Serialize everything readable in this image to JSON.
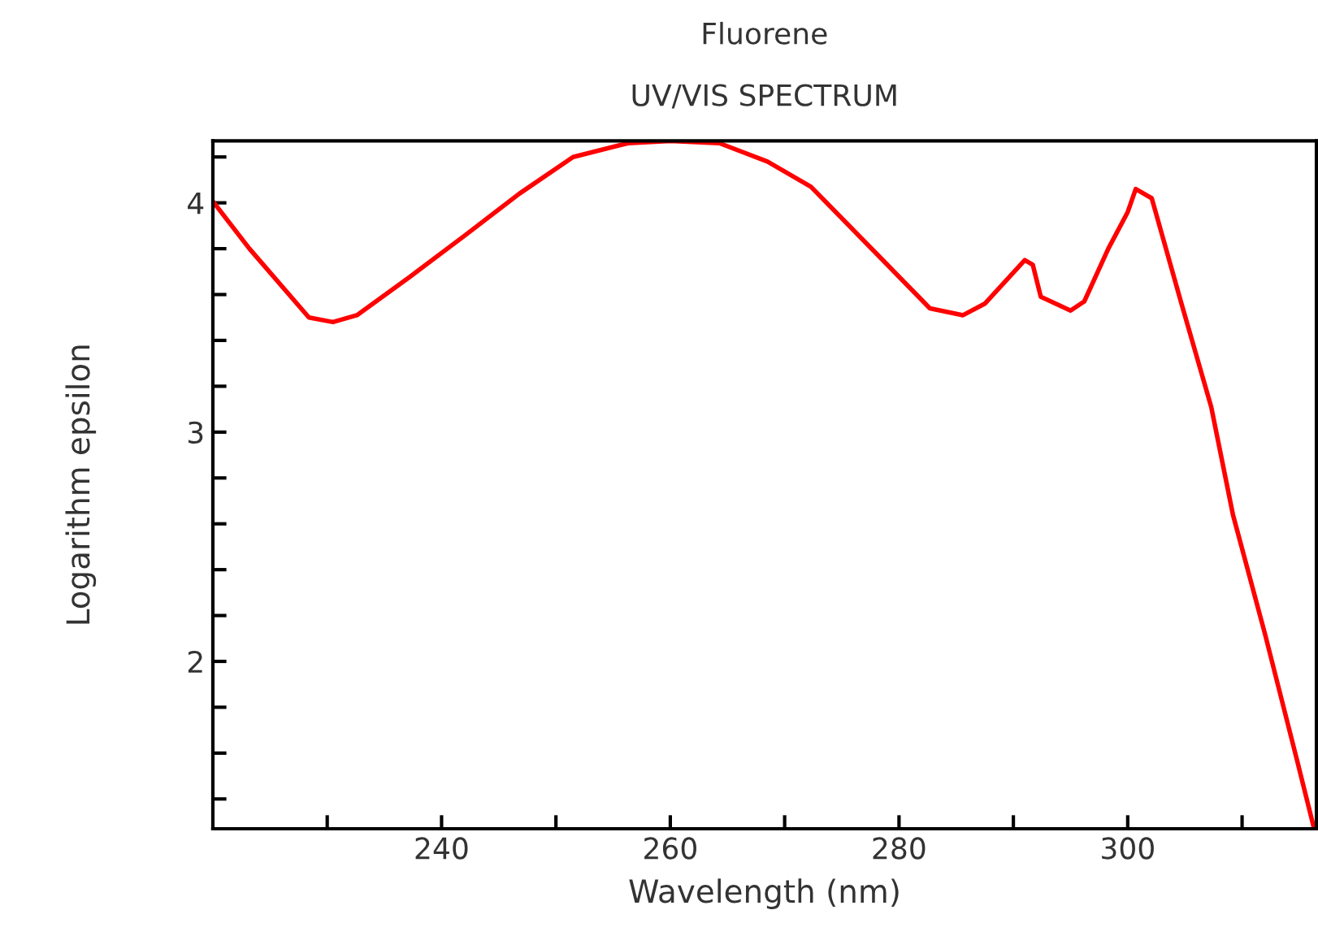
{
  "chart_data": {
    "type": "line",
    "title": "Fluorene",
    "subtitle": "UV/VIS SPECTRUM",
    "xlabel": "Wavelength (nm)",
    "ylabel": "Logarithm epsilon",
    "xlim": [
      220,
      316.5
    ],
    "ylim": [
      1.27,
      4.27
    ],
    "xticks": [
      {
        "value": 230,
        "label": null
      },
      240,
      {
        "value": 250,
        "label": null
      },
      260,
      {
        "value": 270,
        "label": null
      },
      280,
      {
        "value": 290,
        "label": null
      },
      300,
      {
        "value": 310,
        "label": null
      }
    ],
    "yticks": [
      {
        "value": 1.4,
        "label": null
      },
      {
        "value": 1.6,
        "label": null
      },
      {
        "value": 1.8,
        "label": null
      },
      2,
      {
        "value": 2.2,
        "label": null
      },
      {
        "value": 2.4,
        "label": null
      },
      {
        "value": 2.6,
        "label": null
      },
      {
        "value": 2.8,
        "label": null
      },
      3,
      {
        "value": 3.2,
        "label": null
      },
      {
        "value": 3.4,
        "label": null
      },
      {
        "value": 3.6,
        "label": null
      },
      {
        "value": 3.8,
        "label": null
      },
      4,
      {
        "value": 4.2,
        "label": null
      }
    ],
    "grid": false,
    "legend": false,
    "marker": "none",
    "line_style": "solid",
    "series": [
      {
        "color": "#ff0000",
        "x": [
          220.1,
          223.2,
          228.4,
          230.5,
          232.6,
          237.3,
          242.1,
          246.8,
          251.5,
          256.3,
          260.0,
          264.3,
          268.5,
          272.3,
          278.0,
          282.7,
          285.6,
          287.5,
          291.0,
          291.7,
          292.4,
          295.0,
          296.2,
          298.3,
          300.0,
          300.7,
          302.1,
          304.7,
          307.3,
          309.2,
          312.0,
          314.8,
          316.3
        ],
        "values": [
          4.0,
          3.8,
          3.5,
          3.48,
          3.51,
          3.68,
          3.86,
          4.04,
          4.2,
          4.26,
          4.27,
          4.26,
          4.18,
          4.07,
          3.78,
          3.54,
          3.51,
          3.56,
          3.75,
          3.73,
          3.59,
          3.53,
          3.57,
          3.8,
          3.96,
          4.06,
          4.02,
          3.56,
          3.11,
          2.64,
          2.12,
          1.57,
          1.27
        ]
      }
    ]
  }
}
